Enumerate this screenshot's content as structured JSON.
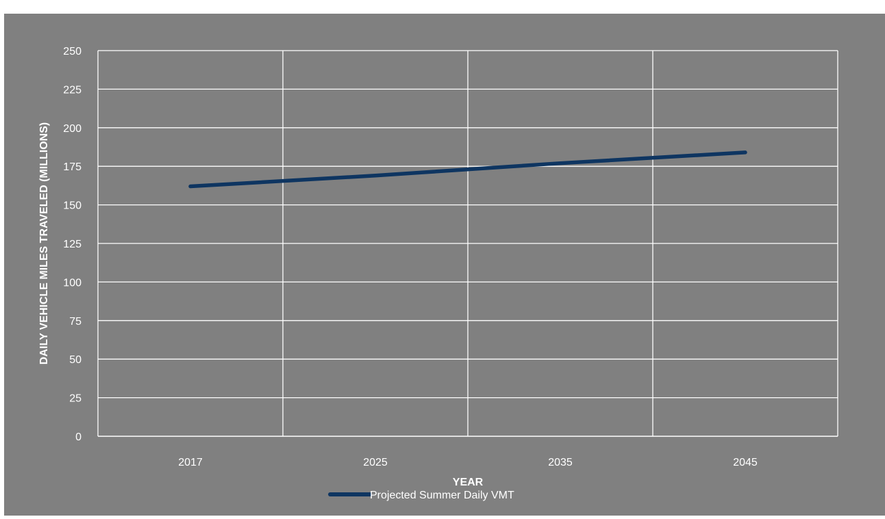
{
  "chart_data": {
    "type": "line",
    "title": "",
    "xlabel": "YEAR",
    "ylabel": "DAILY VEHICLE MILES TRAVELED (MILLIONS)",
    "categories": [
      "2017",
      "2025",
      "2035",
      "2045"
    ],
    "series": [
      {
        "name": "Projected Summer Daily VMT",
        "values": [
          162,
          169,
          177,
          184
        ]
      }
    ],
    "ylim": [
      0,
      250
    ],
    "yticks": [
      0,
      25,
      50,
      75,
      100,
      125,
      150,
      175,
      200,
      225,
      250
    ],
    "grid": true,
    "legend": "bottom-center",
    "colors": {
      "background": "#808080",
      "grid": "#ffffff",
      "line": "#0e3561",
      "text": "#ffffff"
    }
  }
}
